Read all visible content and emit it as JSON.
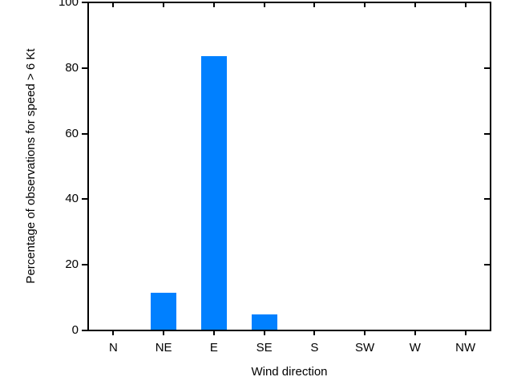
{
  "chart_data": {
    "type": "bar",
    "categories": [
      "N",
      "NE",
      "E",
      "SE",
      "S",
      "SW",
      "W",
      "NW"
    ],
    "values": [
      0,
      11.5,
      83.7,
      5.0,
      0,
      0,
      0,
      0
    ],
    "title": "",
    "xlabel": "Wind direction",
    "ylabel": "Percentage of observations for speed > 6 Kt",
    "ylim": [
      0,
      100
    ],
    "yticks": [
      0,
      20,
      40,
      60,
      80,
      100
    ],
    "grid": false,
    "legend": false,
    "colors": {
      "bar": "#0080FF",
      "axis": "#000000",
      "text": "#000000",
      "background": "#FFFFFF"
    }
  }
}
